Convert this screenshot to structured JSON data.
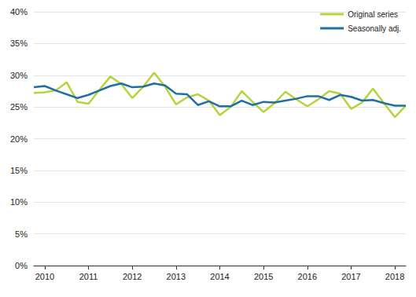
{
  "chart_data": {
    "type": "line",
    "categories": [
      null,
      "2010",
      null,
      null,
      null,
      "2011",
      null,
      null,
      null,
      "2012",
      null,
      null,
      null,
      "2013",
      null,
      null,
      null,
      "2014",
      null,
      null,
      null,
      "2015",
      null,
      null,
      null,
      "2016",
      null,
      null,
      null,
      "2017",
      null,
      null,
      null,
      "2018",
      null
    ],
    "series": [
      {
        "name": "Original series",
        "color": "#b4d43c",
        "values": [
          27.2,
          27.3,
          27.6,
          28.9,
          25.8,
          25.5,
          27.7,
          29.8,
          28.6,
          26.4,
          28.2,
          30.4,
          28.2,
          25.4,
          26.5,
          27.0,
          26.0,
          23.7,
          25.0,
          27.5,
          25.8,
          24.2,
          25.6,
          27.4,
          26.2,
          25.1,
          26.2,
          27.5,
          27.1,
          24.7,
          25.7,
          27.9,
          25.6,
          23.4,
          25.2
        ]
      },
      {
        "name": "Seasonally adj.",
        "color": "#1f6fa5",
        "values": [
          28.1,
          28.3,
          27.6,
          27.0,
          26.4,
          26.9,
          27.6,
          28.3,
          28.7,
          28.1,
          28.2,
          28.7,
          28.4,
          27.1,
          27.0,
          25.3,
          25.9,
          25.1,
          25.1,
          26.0,
          25.3,
          25.8,
          25.7,
          26.0,
          26.3,
          26.7,
          26.7,
          26.1,
          26.9,
          26.6,
          26.0,
          26.1,
          25.6,
          25.2,
          25.2
        ]
      }
    ],
    "ylim": [
      0,
      40
    ],
    "yticks": [
      {
        "value": 0,
        "label": "0%"
      },
      {
        "value": 5,
        "label": "5%"
      },
      {
        "value": 10,
        "label": "10%"
      },
      {
        "value": 15,
        "label": "15%"
      },
      {
        "value": 20,
        "label": "20%"
      },
      {
        "value": 25,
        "label": "25%"
      },
      {
        "value": 30,
        "label": "30%"
      },
      {
        "value": 35,
        "label": "35%"
      },
      {
        "value": 40,
        "label": "40%"
      }
    ],
    "grid": true,
    "legend": "top-right"
  }
}
